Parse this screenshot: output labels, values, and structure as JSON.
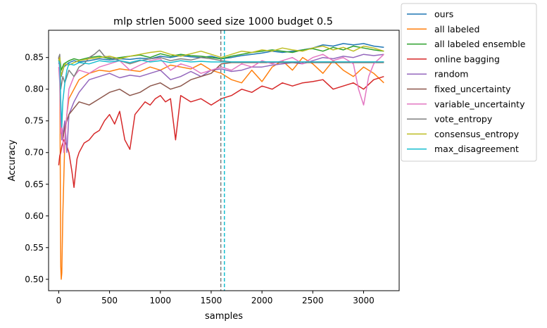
{
  "chart_data": {
    "type": "line",
    "title": "mlp strlen 5000 seed size 1000 budget 0.5",
    "xlabel": "samples",
    "ylabel": "Accuracy",
    "xlim": [
      -100,
      3350
    ],
    "ylim": [
      0.482,
      0.893
    ],
    "xticks": [
      0,
      500,
      1000,
      1500,
      2000,
      2500,
      3000
    ],
    "yticks": [
      0.5,
      0.55,
      0.6,
      0.65,
      0.7,
      0.75,
      0.8,
      0.85
    ],
    "xtick_labels": [
      "0",
      "500",
      "1000",
      "1500",
      "2000",
      "2500",
      "3000"
    ],
    "ytick_labels": [
      "0.50",
      "0.55",
      "0.60",
      "0.65",
      "0.70",
      "0.75",
      "0.80",
      "0.85"
    ],
    "grid": false,
    "legend_position": "outside-upper-right",
    "vlines": [
      {
        "x": 1595,
        "color": "#7f7f7f",
        "style": "dashed"
      },
      {
        "x": 1630,
        "color": "#17becf",
        "style": "dashed"
      }
    ],
    "series": [
      {
        "name": "ours",
        "color": "#1f77b4",
        "x": [
          0,
          10,
          25,
          50,
          100,
          150,
          200,
          300,
          400,
          500,
          600,
          700,
          800,
          900,
          1000,
          1100,
          1200,
          1300,
          1400,
          1500,
          1600,
          1700,
          1800,
          1900,
          2000,
          2100,
          2200,
          2300,
          2400,
          2500,
          2600,
          2700,
          2800,
          2900,
          3000,
          3100,
          3200
        ],
        "values": [
          0.84,
          0.845,
          0.82,
          0.835,
          0.842,
          0.845,
          0.843,
          0.845,
          0.848,
          0.846,
          0.848,
          0.847,
          0.849,
          0.848,
          0.852,
          0.85,
          0.853,
          0.851,
          0.85,
          0.852,
          0.848,
          0.85,
          0.853,
          0.855,
          0.857,
          0.86,
          0.858,
          0.86,
          0.862,
          0.865,
          0.87,
          0.868,
          0.872,
          0.87,
          0.872,
          0.868,
          0.866
        ]
      },
      {
        "name": "all labeled",
        "color": "#ff7f0e",
        "x": [
          0,
          10,
          20,
          25,
          30,
          40,
          60,
          80,
          100,
          150,
          200,
          250,
          300,
          400,
          500,
          600,
          700,
          800,
          900,
          1000,
          1100,
          1200,
          1300,
          1400,
          1500,
          1600,
          1700,
          1800,
          1900,
          2000,
          2100,
          2200,
          2300,
          2400,
          2500,
          2600,
          2700,
          2800,
          2900,
          3000,
          3100,
          3200
        ],
        "values": [
          0.845,
          0.84,
          0.52,
          0.5,
          0.51,
          0.6,
          0.72,
          0.76,
          0.785,
          0.8,
          0.815,
          0.82,
          0.825,
          0.83,
          0.828,
          0.832,
          0.83,
          0.828,
          0.835,
          0.83,
          0.838,
          0.835,
          0.832,
          0.84,
          0.83,
          0.825,
          0.815,
          0.81,
          0.83,
          0.812,
          0.835,
          0.845,
          0.83,
          0.85,
          0.84,
          0.825,
          0.845,
          0.83,
          0.82,
          0.835,
          0.825,
          0.81
        ]
      },
      {
        "name": "all labeled ensemble",
        "color": "#2ca02c",
        "x": [
          0,
          10,
          25,
          50,
          100,
          150,
          200,
          300,
          400,
          500,
          600,
          700,
          800,
          900,
          1000,
          1100,
          1200,
          1300,
          1400,
          1500,
          1600,
          1700,
          1800,
          1900,
          2000,
          2100,
          2200,
          2300,
          2400,
          2500,
          2600,
          2700,
          2800,
          2900,
          3000,
          3100,
          3200
        ],
        "values": [
          0.845,
          0.85,
          0.83,
          0.84,
          0.845,
          0.848,
          0.846,
          0.85,
          0.852,
          0.848,
          0.85,
          0.852,
          0.854,
          0.85,
          0.856,
          0.852,
          0.855,
          0.853,
          0.852,
          0.85,
          0.848,
          0.852,
          0.855,
          0.858,
          0.86,
          0.862,
          0.86,
          0.858,
          0.862,
          0.864,
          0.86,
          0.866,
          0.862,
          0.868,
          0.865,
          0.862,
          0.86
        ]
      },
      {
        "name": "online bagging",
        "color": "#d62728",
        "x": [
          0,
          10,
          20,
          30,
          50,
          80,
          100,
          130,
          150,
          180,
          200,
          250,
          300,
          350,
          400,
          450,
          500,
          550,
          600,
          650,
          700,
          750,
          800,
          850,
          900,
          950,
          1000,
          1050,
          1100,
          1150,
          1200,
          1300,
          1400,
          1500,
          1600,
          1700,
          1800,
          1900,
          2000,
          2100,
          2200,
          2300,
          2400,
          2500,
          2600,
          2700,
          2800,
          2900,
          3000,
          3100,
          3200
        ],
        "values": [
          0.68,
          0.695,
          0.7,
          0.71,
          0.72,
          0.71,
          0.7,
          0.67,
          0.645,
          0.69,
          0.7,
          0.715,
          0.72,
          0.73,
          0.735,
          0.75,
          0.76,
          0.745,
          0.765,
          0.72,
          0.705,
          0.76,
          0.77,
          0.78,
          0.775,
          0.785,
          0.79,
          0.78,
          0.785,
          0.72,
          0.79,
          0.78,
          0.785,
          0.775,
          0.785,
          0.79,
          0.8,
          0.795,
          0.805,
          0.8,
          0.81,
          0.805,
          0.81,
          0.812,
          0.815,
          0.8,
          0.805,
          0.81,
          0.8,
          0.815,
          0.82
        ]
      },
      {
        "name": "random",
        "color": "#9467bd",
        "x": [
          0,
          10,
          20,
          30,
          40,
          60,
          80,
          100,
          150,
          200,
          250,
          300,
          400,
          500,
          600,
          700,
          800,
          900,
          1000,
          1100,
          1200,
          1300,
          1400,
          1500,
          1600,
          1700,
          1800,
          1900,
          2000,
          2100,
          2200,
          2300,
          2400,
          2500,
          2600,
          2700,
          2800,
          2900,
          3000,
          3100,
          3200
        ],
        "values": [
          0.85,
          0.83,
          0.76,
          0.72,
          0.73,
          0.75,
          0.7,
          0.76,
          0.78,
          0.795,
          0.805,
          0.815,
          0.82,
          0.825,
          0.818,
          0.822,
          0.82,
          0.825,
          0.83,
          0.815,
          0.82,
          0.828,
          0.82,
          0.83,
          0.832,
          0.828,
          0.83,
          0.835,
          0.835,
          0.838,
          0.84,
          0.842,
          0.84,
          0.845,
          0.85,
          0.848,
          0.852,
          0.85,
          0.855,
          0.853,
          0.855
        ]
      },
      {
        "name": "fixed_uncertainty",
        "color": "#8c564b",
        "x": [
          0,
          10,
          20,
          40,
          60,
          100,
          150,
          200,
          300,
          400,
          500,
          600,
          700,
          800,
          900,
          1000,
          1100,
          1200,
          1300,
          1400,
          1500,
          1600,
          1700,
          1800,
          1900,
          2000,
          2100,
          2200,
          2300,
          2400,
          2500,
          2600,
          2700,
          2800,
          2900,
          3000,
          3100,
          3200
        ],
        "values": [
          0.85,
          0.84,
          0.76,
          0.72,
          0.74,
          0.76,
          0.77,
          0.78,
          0.775,
          0.785,
          0.795,
          0.8,
          0.79,
          0.795,
          0.805,
          0.81,
          0.8,
          0.805,
          0.815,
          0.82,
          0.825,
          0.84,
          0.842,
          0.842,
          0.842,
          0.842,
          0.842,
          0.842,
          0.842,
          0.842,
          0.842,
          0.842,
          0.842,
          0.842,
          0.842,
          0.842,
          0.842,
          0.842
        ]
      },
      {
        "name": "variable_uncertainty",
        "color": "#e377c2",
        "x": [
          0,
          10,
          20,
          30,
          50,
          70,
          100,
          150,
          200,
          300,
          400,
          500,
          600,
          700,
          800,
          900,
          1000,
          1100,
          1200,
          1300,
          1400,
          1500,
          1600,
          1700,
          1800,
          1900,
          2000,
          2100,
          2200,
          2300,
          2400,
          2500,
          2600,
          2700,
          2800,
          2900,
          2950,
          3000,
          3050,
          3100,
          3200
        ],
        "values": [
          0.835,
          0.81,
          0.73,
          0.74,
          0.7,
          0.74,
          0.8,
          0.82,
          0.83,
          0.825,
          0.835,
          0.84,
          0.845,
          0.83,
          0.838,
          0.845,
          0.848,
          0.83,
          0.84,
          0.835,
          0.825,
          0.83,
          0.835,
          0.83,
          0.84,
          0.835,
          0.845,
          0.84,
          0.845,
          0.85,
          0.84,
          0.85,
          0.855,
          0.845,
          0.85,
          0.84,
          0.8,
          0.775,
          0.82,
          0.84,
          0.855
        ]
      },
      {
        "name": "vote_entropy",
        "color": "#7f7f7f",
        "x": [
          0,
          10,
          20,
          40,
          60,
          100,
          150,
          200,
          250,
          300,
          350,
          400,
          450,
          500,
          600,
          700,
          800,
          900,
          1000,
          1100,
          1200,
          1300,
          1400,
          1500,
          1600,
          1700,
          1800,
          1900,
          2000,
          2200,
          2400,
          2600,
          2800,
          3000,
          3200
        ],
        "values": [
          0.85,
          0.855,
          0.8,
          0.82,
          0.81,
          0.83,
          0.82,
          0.835,
          0.84,
          0.85,
          0.855,
          0.862,
          0.852,
          0.85,
          0.845,
          0.84,
          0.845,
          0.848,
          0.85,
          0.845,
          0.848,
          0.846,
          0.85,
          0.848,
          0.845,
          0.843,
          0.843,
          0.843,
          0.843,
          0.843,
          0.843,
          0.843,
          0.843,
          0.843,
          0.843
        ]
      },
      {
        "name": "consensus_entropy",
        "color": "#bcbd22",
        "x": [
          0,
          10,
          20,
          40,
          60,
          100,
          150,
          200,
          300,
          400,
          500,
          600,
          700,
          800,
          900,
          1000,
          1100,
          1200,
          1300,
          1400,
          1500,
          1600,
          1700,
          1800,
          1900,
          2000,
          2100,
          2200,
          2300,
          2400,
          2500,
          2600,
          2700,
          2800,
          2900,
          3000,
          3100,
          3200
        ],
        "values": [
          0.845,
          0.85,
          0.82,
          0.83,
          0.84,
          0.838,
          0.842,
          0.845,
          0.848,
          0.85,
          0.852,
          0.848,
          0.852,
          0.855,
          0.858,
          0.86,
          0.855,
          0.852,
          0.856,
          0.86,
          0.855,
          0.85,
          0.855,
          0.86,
          0.858,
          0.862,
          0.86,
          0.865,
          0.862,
          0.86,
          0.865,
          0.868,
          0.862,
          0.866,
          0.86,
          0.868,
          0.865,
          0.86
        ]
      },
      {
        "name": "max_disagreement",
        "color": "#17becf",
        "x": [
          0,
          10,
          20,
          30,
          40,
          60,
          80,
          100,
          150,
          200,
          300,
          400,
          500,
          600,
          700,
          800,
          900,
          1000,
          1100,
          1200,
          1300,
          1400,
          1500,
          1600,
          1700,
          1800,
          1900,
          2000,
          2200,
          2400,
          2600,
          2800,
          3000,
          3200
        ],
        "values": [
          0.845,
          0.84,
          0.78,
          0.74,
          0.78,
          0.81,
          0.83,
          0.84,
          0.838,
          0.842,
          0.84,
          0.845,
          0.843,
          0.845,
          0.842,
          0.846,
          0.843,
          0.845,
          0.842,
          0.845,
          0.843,
          0.844,
          0.843,
          0.843,
          0.843,
          0.843,
          0.843,
          0.843,
          0.843,
          0.843,
          0.843,
          0.843,
          0.843,
          0.843
        ]
      }
    ]
  }
}
